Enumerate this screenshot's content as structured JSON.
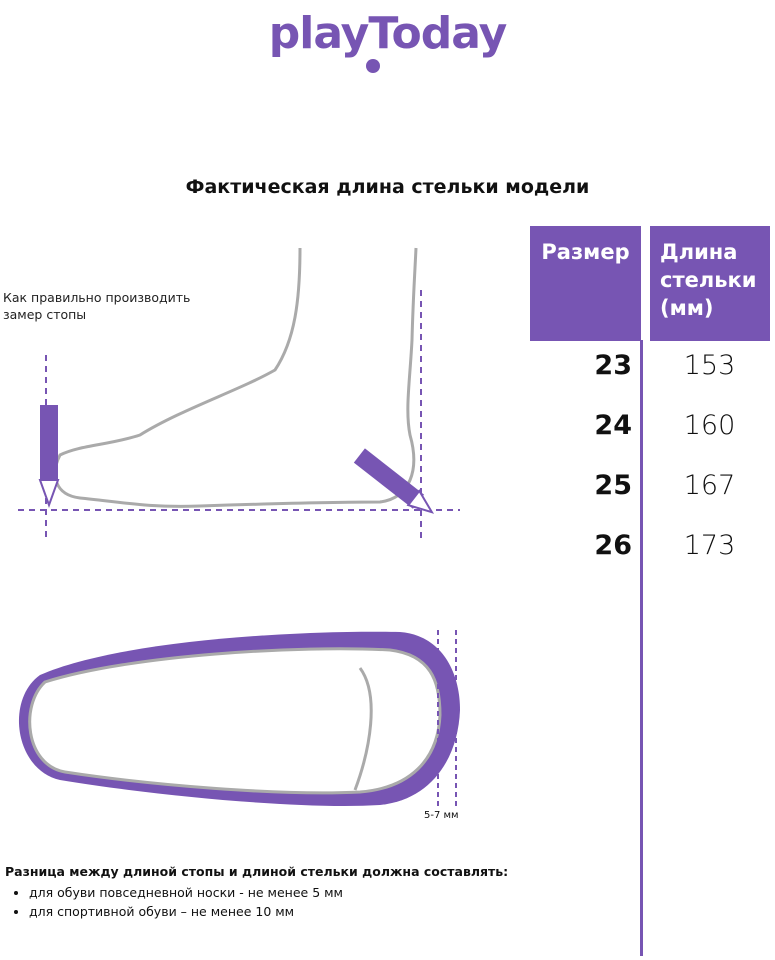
{
  "logo": {
    "text": "playToday",
    "color": "#7755b3"
  },
  "title": "Фактическая длина стельки модели",
  "measure_hint": [
    "Как правильно производить",
    "замер стопы"
  ],
  "table": {
    "headers": [
      "Размер",
      "Длина стельки (мм)"
    ],
    "rows": [
      {
        "size": "23",
        "length": "153"
      },
      {
        "size": "24",
        "length": "160"
      },
      {
        "size": "25",
        "length": "167"
      },
      {
        "size": "26",
        "length": "173"
      }
    ]
  },
  "gap_label": "5-7 мм",
  "note": {
    "heading": "Разница между длиной стопы и длиной стельки должна составлять:",
    "items": [
      "для обуви повседневной носки -  не менее 5 мм",
      "для спортивной обуви – не менее 10 мм"
    ]
  },
  "colors": {
    "accent": "#7755b3",
    "outline": "#aaaaaa"
  }
}
